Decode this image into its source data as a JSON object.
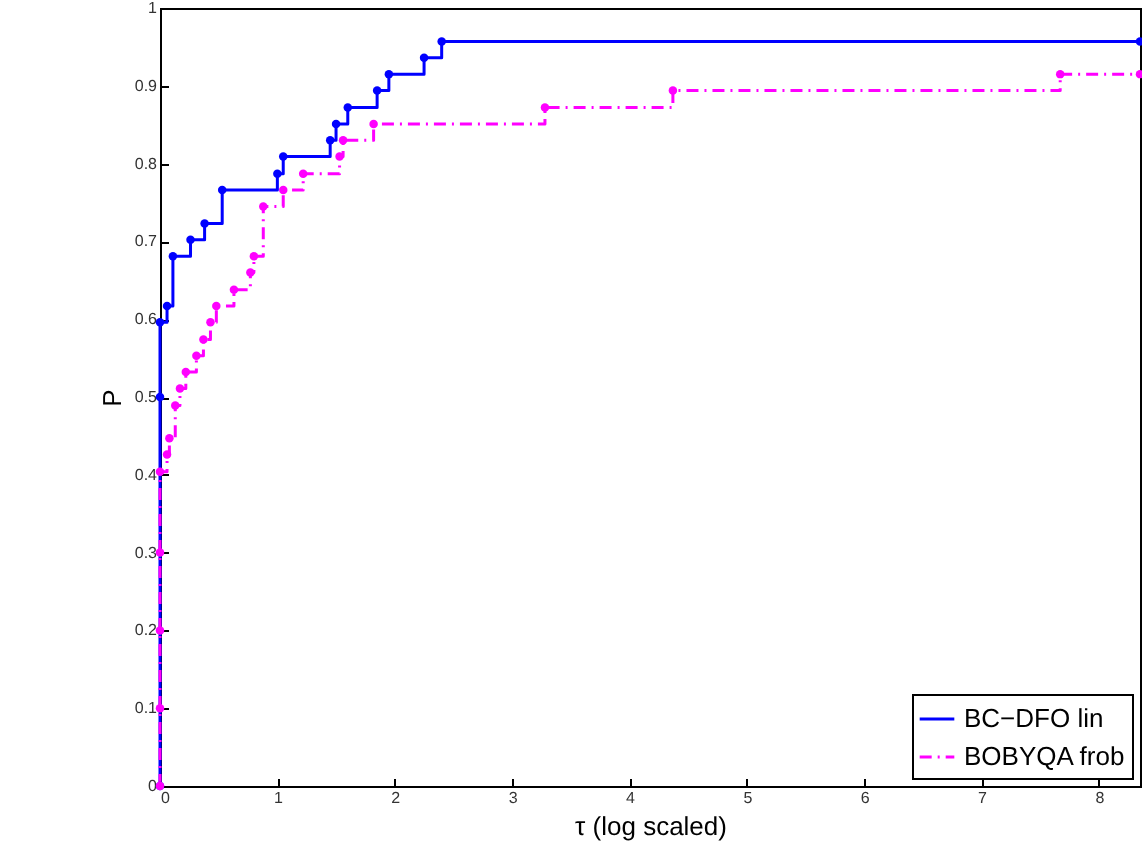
{
  "chart_data": {
    "type": "step",
    "xlabel": "τ (log scaled)",
    "ylabel": "P",
    "xlim": [
      0,
      8.35
    ],
    "ylim": [
      0,
      1
    ],
    "xticks": [
      0,
      1,
      2,
      3,
      4,
      5,
      6,
      7,
      8
    ],
    "yticks": [
      0,
      0.1,
      0.2,
      0.3,
      0.4,
      0.5,
      0.6,
      0.7,
      0.8,
      0.9,
      1
    ],
    "grid": false,
    "legend": "bottom right",
    "marker": "circle",
    "series": [
      {
        "name": "BC−DFO lin",
        "color": "#0000ff",
        "line_style": "solid",
        "x": [
          0,
          0,
          0,
          0.06,
          0.11,
          0.26,
          0.38,
          0.53,
          1.0,
          1.05,
          1.45,
          1.5,
          1.6,
          1.85,
          1.95,
          2.25,
          2.4,
          8.35
        ],
        "values": [
          0,
          0.5,
          0.596,
          0.617,
          0.681,
          0.702,
          0.723,
          0.766,
          0.787,
          0.809,
          0.83,
          0.851,
          0.872,
          0.894,
          0.915,
          0.936,
          0.957,
          0.957
        ]
      },
      {
        "name": "BOBYQA frob",
        "color": "#ff00ff",
        "line_style": "dashed",
        "x": [
          0,
          0,
          0,
          0,
          0,
          0.06,
          0.08,
          0.13,
          0.17,
          0.22,
          0.31,
          0.37,
          0.43,
          0.48,
          0.63,
          0.77,
          0.8,
          0.88,
          1.05,
          1.22,
          1.53,
          1.56,
          1.82,
          3.28,
          4.37,
          7.67,
          8.35
        ],
        "values": [
          0,
          0.1,
          0.2,
          0.3,
          0.404,
          0.426,
          0.447,
          0.489,
          0.511,
          0.532,
          0.553,
          0.574,
          0.596,
          0.617,
          0.638,
          0.66,
          0.681,
          0.745,
          0.766,
          0.787,
          0.809,
          0.83,
          0.851,
          0.872,
          0.894,
          0.915,
          0.915
        ]
      }
    ]
  }
}
